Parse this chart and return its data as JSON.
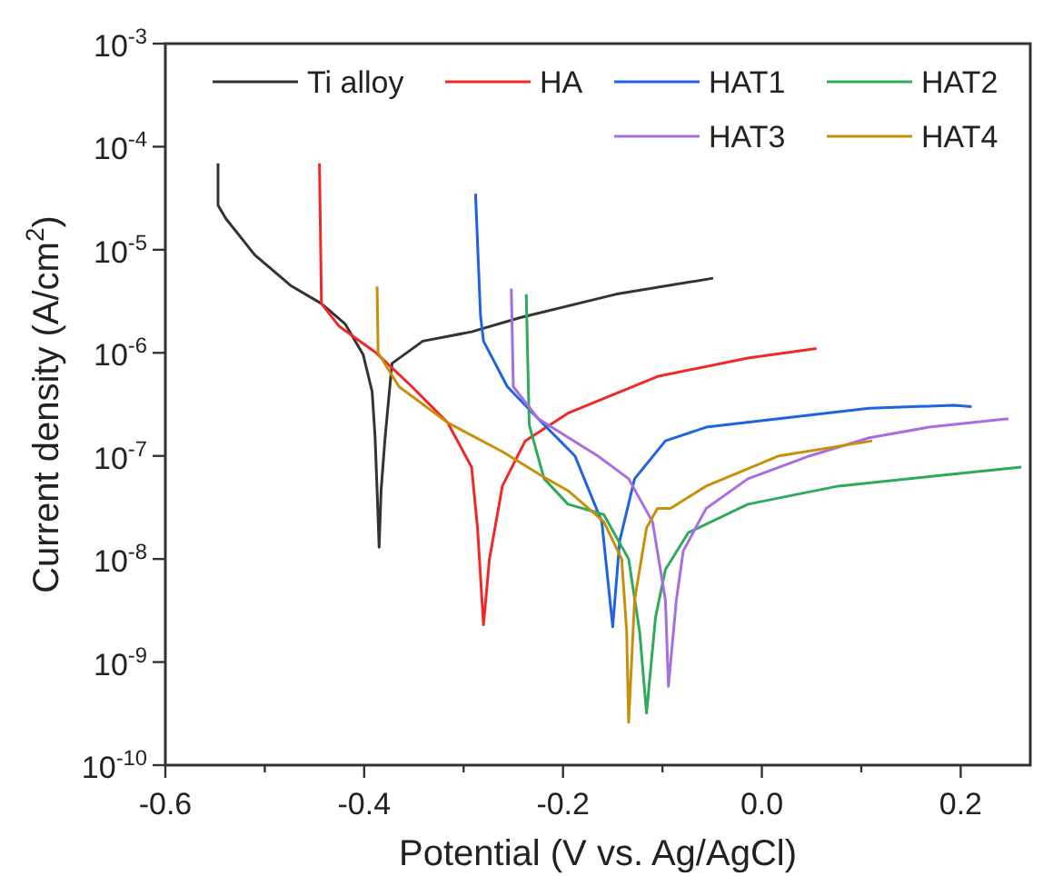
{
  "chart_data": {
    "type": "line",
    "xlabel": "Potential (V vs. Ag/AgCl)",
    "ylabel": "Current density (A/cm$^{2}$)",
    "log": "y",
    "legend": "top",
    "grid": false,
    "line_style": "solid",
    "xlim": [
      -0.6,
      0.27
    ],
    "xticks": [
      -0.6,
      {
        "value": -0.5,
        "label": null
      },
      -0.4,
      {
        "value": -0.3,
        "label": null
      },
      -0.2,
      {
        "value": -0.1,
        "label": null
      },
      {
        "value": 0,
        "label": "0.0"
      },
      {
        "value": 0.1,
        "label": null
      },
      0.2
    ],
    "ylim": [
      1e-10,
      0.001
    ],
    "yticks": [
      {
        "value": 1e-10,
        "label": "10$^{-10}$"
      },
      {
        "value": 1e-09,
        "label": "10$^{-9}$"
      },
      {
        "value": 1e-08,
        "label": "10$^{-8}$"
      },
      {
        "value": 1e-07,
        "label": "10$^{-7}$"
      },
      {
        "value": 1e-06,
        "label": "10$^{-6}$"
      },
      {
        "value": 1e-05,
        "label": "10$^{-5}$"
      },
      {
        "value": 0.0001,
        "label": "10$^{-4}$"
      },
      {
        "value": 0.001,
        "label": "10$^{-3}$"
      }
    ],
    "series": [
      {
        "name": "Ti alloy",
        "color": "#333333",
        "x": [
          -0.547,
          -0.547,
          -0.539,
          -0.51,
          -0.474,
          -0.443,
          -0.419,
          -0.401,
          -0.392,
          -0.389,
          -0.387,
          -0.385,
          -0.383,
          -0.379,
          -0.372,
          -0.341,
          -0.292,
          -0.243,
          -0.147,
          -0.049
        ],
        "values": [
          6.9e-05,
          2.7e-05,
          2e-05,
          8.9e-06,
          4.5e-06,
          3e-06,
          1.9e-06,
          9.6e-07,
          4.2e-07,
          1.5e-07,
          4.6e-08,
          1.3e-08,
          4.6e-08,
          1.5e-07,
          7.9e-07,
          1.3e-06,
          1.6e-06,
          2.2e-06,
          3.7e-06,
          5.3e-06
        ]
      },
      {
        "name": "HA",
        "color": "#f02828",
        "x": [
          -0.445,
          -0.443,
          -0.425,
          -0.388,
          -0.352,
          -0.316,
          -0.292,
          -0.286,
          -0.28,
          -0.274,
          -0.261,
          -0.238,
          -0.195,
          -0.105,
          -0.014,
          0.055
        ],
        "values": [
          6.9e-05,
          3e-06,
          1.8e-06,
          1e-06,
          4.7e-07,
          2.1e-07,
          7.8e-08,
          2e-08,
          2.3e-09,
          1e-08,
          5.1e-08,
          1.4e-07,
          2.6e-07,
          5.9e-07,
          8.9e-07,
          1.1e-06
        ]
      },
      {
        "name": "HAT1",
        "color": "#1f63e0",
        "x": [
          -0.288,
          -0.283,
          -0.28,
          -0.256,
          -0.219,
          -0.188,
          -0.161,
          -0.15,
          -0.143,
          -0.128,
          -0.097,
          -0.056,
          0.017,
          0.108,
          0.193,
          0.211
        ],
        "values": [
          3.5e-05,
          2.3e-06,
          1.3e-06,
          4.7e-07,
          2e-07,
          1e-07,
          2.3e-08,
          2.2e-09,
          1.5e-08,
          6e-08,
          1.4e-07,
          1.9e-07,
          2.3e-07,
          2.9e-07,
          3.1e-07,
          3e-07
        ]
      },
      {
        "name": "HAT2",
        "color": "#2eaa5a",
        "x": [
          -0.237,
          -0.234,
          -0.219,
          -0.195,
          -0.159,
          -0.134,
          -0.123,
          -0.116,
          -0.107,
          -0.097,
          -0.074,
          -0.014,
          0.077,
          0.168,
          0.261
        ],
        "values": [
          3.7e-06,
          2e-07,
          6e-08,
          3.4e-08,
          2.7e-08,
          1e-08,
          2e-09,
          3.2e-10,
          2.7e-09,
          7.9e-09,
          1.8e-08,
          3.4e-08,
          5.1e-08,
          6.3e-08,
          7.8e-08
        ]
      },
      {
        "name": "HAT3",
        "color": "#a66ee0",
        "x": [
          -0.252,
          -0.25,
          -0.225,
          -0.165,
          -0.134,
          -0.11,
          -0.097,
          -0.094,
          -0.086,
          -0.079,
          -0.056,
          -0.014,
          0.048,
          0.108,
          0.168,
          0.248
        ],
        "values": [
          4.2e-06,
          4.7e-07,
          2.3e-07,
          1e-07,
          6e-08,
          2.3e-08,
          4e-09,
          5.8e-10,
          4e-09,
          1.2e-08,
          3.1e-08,
          6e-08,
          1e-07,
          1.5e-07,
          1.9e-07,
          2.3e-07
        ]
      },
      {
        "name": "HAT4",
        "color": "#c8900a",
        "x": [
          -0.387,
          -0.386,
          -0.365,
          -0.316,
          -0.261,
          -0.22,
          -0.195,
          -0.159,
          -0.141,
          -0.136,
          -0.134,
          -0.128,
          -0.116,
          -0.105,
          -0.092,
          -0.056,
          0.017,
          0.111
        ],
        "values": [
          4.4e-06,
          1e-06,
          4.7e-07,
          2.1e-07,
          1.1e-07,
          6.3e-08,
          4.6e-08,
          2.3e-08,
          1e-08,
          2e-09,
          2.6e-10,
          4e-09,
          2e-08,
          3.1e-08,
          3.1e-08,
          5.1e-08,
          1e-07,
          1.4e-07
        ]
      }
    ]
  }
}
